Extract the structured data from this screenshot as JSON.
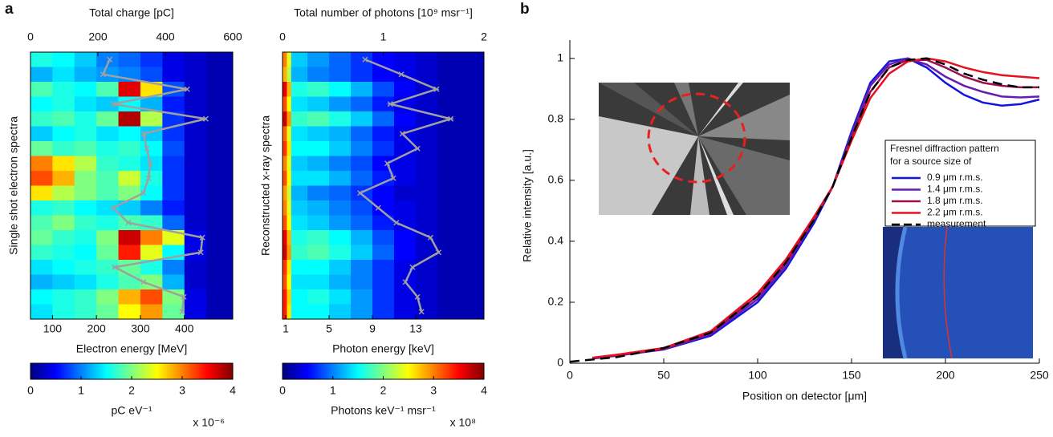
{
  "panel_labels": [
    "a",
    "b"
  ],
  "chart_data": [
    {
      "type": "heatmap",
      "x2label": "Total charge [pC]",
      "x2lim": [
        0,
        600
      ],
      "x2ticks": [
        0,
        200,
        400,
        600
      ],
      "xlabel": "Electron energy [MeV]",
      "xlim": [
        50,
        510
      ],
      "xticks": [
        100,
        200,
        300,
        400
      ],
      "ylabel": "Single shot electron spectra",
      "colormap": "jet",
      "xbins": [
        50,
        100,
        150,
        200,
        250,
        300,
        350,
        400,
        450,
        510
      ],
      "z": [
        [
          1.6,
          1.5,
          1.3,
          1.0,
          0.9,
          0.7,
          0.4,
          0.3,
          0.2
        ],
        [
          1.2,
          1.4,
          1.2,
          1.1,
          1.0,
          0.8,
          0.4,
          0.3,
          0.2
        ],
        [
          1.8,
          1.6,
          1.5,
          1.8,
          3.6,
          2.6,
          0.8,
          0.3,
          0.2
        ],
        [
          1.5,
          1.6,
          1.4,
          1.3,
          1.5,
          1.2,
          0.6,
          0.3,
          0.2
        ],
        [
          1.7,
          1.8,
          1.6,
          1.9,
          3.8,
          2.2,
          0.7,
          0.3,
          0.2
        ],
        [
          1.3,
          1.5,
          1.6,
          1.4,
          1.5,
          1.3,
          0.7,
          0.3,
          0.2
        ],
        [
          1.9,
          1.7,
          1.8,
          1.6,
          1.7,
          1.5,
          0.8,
          0.3,
          0.2
        ],
        [
          3.0,
          2.6,
          2.2,
          1.7,
          1.6,
          1.4,
          0.7,
          0.3,
          0.2
        ],
        [
          3.2,
          2.8,
          2.0,
          1.8,
          2.3,
          1.6,
          0.7,
          0.3,
          0.2
        ],
        [
          2.6,
          2.2,
          2.0,
          1.8,
          2.0,
          1.5,
          0.7,
          0.3,
          0.2
        ],
        [
          1.6,
          1.7,
          1.5,
          1.4,
          1.3,
          1.0,
          0.6,
          0.3,
          0.2
        ],
        [
          1.8,
          2.0,
          1.7,
          1.6,
          1.8,
          1.7,
          0.9,
          0.3,
          0.2
        ],
        [
          1.9,
          1.7,
          1.6,
          2.0,
          3.7,
          3.0,
          2.4,
          0.4,
          0.2
        ],
        [
          1.7,
          1.6,
          1.5,
          1.9,
          3.4,
          2.4,
          1.5,
          0.4,
          0.2
        ],
        [
          1.4,
          1.5,
          1.6,
          1.7,
          1.9,
          1.6,
          1.0,
          0.3,
          0.2
        ],
        [
          1.2,
          1.3,
          1.4,
          1.6,
          1.8,
          2.0,
          1.2,
          0.3,
          0.2
        ],
        [
          1.5,
          1.6,
          1.7,
          2.0,
          2.8,
          3.2,
          2.0,
          0.4,
          0.2
        ],
        [
          1.4,
          1.6,
          1.7,
          1.9,
          2.5,
          2.9,
          1.9,
          0.4,
          0.2
        ]
      ],
      "overlay": {
        "axis": "x2",
        "color": "#a0a0a0",
        "marker": "x",
        "values": [
          235,
          215,
          465,
          245,
          520,
          335,
          345,
          355,
          350,
          335,
          245,
          290,
          510,
          505,
          250,
          335,
          455,
          450
        ]
      },
      "colorbar": {
        "lim": [
          0,
          4
        ],
        "ticks": [
          0,
          1,
          2,
          3,
          4
        ],
        "label": "pC eV⁻¹",
        "multiplier": "x 10⁻⁶"
      }
    },
    {
      "type": "heatmap",
      "x2label": "Total number of photons  [10⁹ msr⁻¹]",
      "x2lim": [
        0,
        2
      ],
      "x2ticks": [
        0,
        1,
        2
      ],
      "xlabel": "Photon energy [keV]",
      "xlim": [
        0.7,
        19.3
      ],
      "xticks": [
        1,
        5,
        9,
        13
      ],
      "ylabel": "Reconstructed x-ray spectra",
      "colormap": "jet",
      "xbins": [
        0.7,
        1.1,
        1.5,
        3,
        5,
        7,
        9,
        11,
        13,
        15,
        19.3
      ],
      "z": [
        [
          3.0,
          2.4,
          1.3,
          1.1,
          0.9,
          0.7,
          0.5,
          0.4,
          0.3,
          0.2
        ],
        [
          2.8,
          2.2,
          1.2,
          1.0,
          0.9,
          0.7,
          0.5,
          0.4,
          0.3,
          0.2
        ],
        [
          3.6,
          2.8,
          1.6,
          1.7,
          1.5,
          1.2,
          0.8,
          0.5,
          0.3,
          0.2
        ],
        [
          3.2,
          2.5,
          1.4,
          1.3,
          1.1,
          0.9,
          0.6,
          0.4,
          0.3,
          0.2
        ],
        [
          3.7,
          2.9,
          1.7,
          1.8,
          1.6,
          1.3,
          0.9,
          0.5,
          0.3,
          0.2
        ],
        [
          3.1,
          2.4,
          1.4,
          1.3,
          1.2,
          0.9,
          0.6,
          0.4,
          0.3,
          0.2
        ],
        [
          3.3,
          2.6,
          1.5,
          1.5,
          1.3,
          1.0,
          0.7,
          0.4,
          0.3,
          0.2
        ],
        [
          3.0,
          2.4,
          1.3,
          1.2,
          1.0,
          0.8,
          0.5,
          0.4,
          0.3,
          0.2
        ],
        [
          3.2,
          2.5,
          1.4,
          1.4,
          1.2,
          0.9,
          0.6,
          0.4,
          0.3,
          0.2
        ],
        [
          2.9,
          2.3,
          1.2,
          1.0,
          0.9,
          0.7,
          0.5,
          0.3,
          0.3,
          0.2
        ],
        [
          3.0,
          2.4,
          1.3,
          1.2,
          1.0,
          0.8,
          0.5,
          0.4,
          0.3,
          0.2
        ],
        [
          3.2,
          2.5,
          1.4,
          1.3,
          1.1,
          0.9,
          0.6,
          0.4,
          0.3,
          0.2
        ],
        [
          3.6,
          2.8,
          1.6,
          1.7,
          1.5,
          1.2,
          0.8,
          0.5,
          0.3,
          0.2
        ],
        [
          3.7,
          2.9,
          1.7,
          1.8,
          1.6,
          1.3,
          0.9,
          0.5,
          0.3,
          0.2
        ],
        [
          3.3,
          2.6,
          1.5,
          1.5,
          1.3,
          1.0,
          0.7,
          0.4,
          0.3,
          0.2
        ],
        [
          3.2,
          2.5,
          1.4,
          1.4,
          1.2,
          1.0,
          0.7,
          0.4,
          0.3,
          0.2
        ],
        [
          3.4,
          2.7,
          1.5,
          1.6,
          1.4,
          1.1,
          0.7,
          0.4,
          0.3,
          0.2
        ],
        [
          3.4,
          2.6,
          1.5,
          1.5,
          1.3,
          1.1,
          0.7,
          0.4,
          0.3,
          0.2
        ]
      ],
      "overlay": {
        "axis": "x2",
        "color": "#a0a0a0",
        "marker": "x",
        "values": [
          0.82,
          1.18,
          1.53,
          1.07,
          1.67,
          1.19,
          1.34,
          1.04,
          1.1,
          0.77,
          0.95,
          1.13,
          1.47,
          1.55,
          1.29,
          1.22,
          1.34,
          1.38
        ]
      },
      "colorbar": {
        "lim": [
          0,
          4
        ],
        "ticks": [
          0,
          1,
          2,
          3,
          4
        ],
        "label": "Photons keV⁻¹ msr⁻¹",
        "multiplier": "x 10⁸"
      }
    },
    {
      "type": "line",
      "xlabel": "Position on detector [μm]",
      "ylabel": "Relative intensity [a.u.]",
      "xlim": [
        0,
        250
      ],
      "xticks": [
        0,
        50,
        100,
        150,
        200,
        250
      ],
      "ylim": [
        0,
        1.06
      ],
      "yticks": [
        0,
        0.2,
        0.4,
        0.6,
        0.8,
        1
      ],
      "legend_title": [
        "Fresnel diffraction pattern",
        "for a source size of"
      ],
      "series": [
        {
          "name": "0.9 μm r.m.s.",
          "color": "#1414e0",
          "dashed": false,
          "x": [
            12,
            25,
            50,
            75,
            100,
            115,
            130,
            140,
            150,
            160,
            170,
            180,
            190,
            200,
            210,
            220,
            230,
            240,
            250
          ],
          "values": [
            0.015,
            0.025,
            0.045,
            0.09,
            0.2,
            0.31,
            0.46,
            0.58,
            0.76,
            0.92,
            0.99,
            1.0,
            0.97,
            0.92,
            0.88,
            0.855,
            0.845,
            0.85,
            0.865
          ]
        },
        {
          "name": "1.4 μm r.m.s.",
          "color": "#6a1ab0",
          "dashed": false,
          "x": [
            12,
            25,
            50,
            75,
            100,
            115,
            130,
            140,
            150,
            160,
            170,
            180,
            190,
            200,
            210,
            220,
            230,
            240,
            250
          ],
          "values": [
            0.016,
            0.025,
            0.046,
            0.095,
            0.21,
            0.32,
            0.47,
            0.58,
            0.75,
            0.91,
            0.98,
            1.0,
            0.98,
            0.94,
            0.91,
            0.89,
            0.875,
            0.872,
            0.875
          ]
        },
        {
          "name": "1.8 μm r.m.s.",
          "color": "#9a1050",
          "dashed": false,
          "x": [
            12,
            25,
            50,
            75,
            100,
            115,
            130,
            140,
            150,
            160,
            170,
            180,
            190,
            200,
            210,
            220,
            230,
            240,
            250
          ],
          "values": [
            0.017,
            0.026,
            0.048,
            0.1,
            0.22,
            0.33,
            0.47,
            0.58,
            0.74,
            0.89,
            0.97,
            0.995,
            0.995,
            0.97,
            0.94,
            0.92,
            0.91,
            0.905,
            0.905
          ]
        },
        {
          "name": "2.2 μm r.m.s.",
          "color": "#e81020",
          "dashed": false,
          "x": [
            12,
            25,
            50,
            75,
            100,
            115,
            130,
            140,
            150,
            160,
            170,
            180,
            190,
            200,
            210,
            220,
            230,
            240,
            250
          ],
          "values": [
            0.018,
            0.028,
            0.05,
            0.105,
            0.23,
            0.34,
            0.48,
            0.58,
            0.73,
            0.87,
            0.95,
            0.99,
            1.0,
            0.99,
            0.97,
            0.955,
            0.945,
            0.94,
            0.935
          ]
        },
        {
          "name": "measurement",
          "color": "#000000",
          "dashed": true,
          "x": [
            0,
            25,
            50,
            75,
            100,
            115,
            130,
            140,
            150,
            160,
            170,
            180,
            190,
            200,
            210,
            220,
            230,
            240,
            250
          ],
          "values": [
            0.005,
            0.02,
            0.05,
            0.1,
            0.22,
            0.33,
            0.47,
            0.58,
            0.74,
            0.89,
            0.97,
            0.995,
            1.0,
            0.98,
            0.95,
            0.93,
            0.915,
            0.905,
            0.905
          ]
        }
      ]
    }
  ]
}
